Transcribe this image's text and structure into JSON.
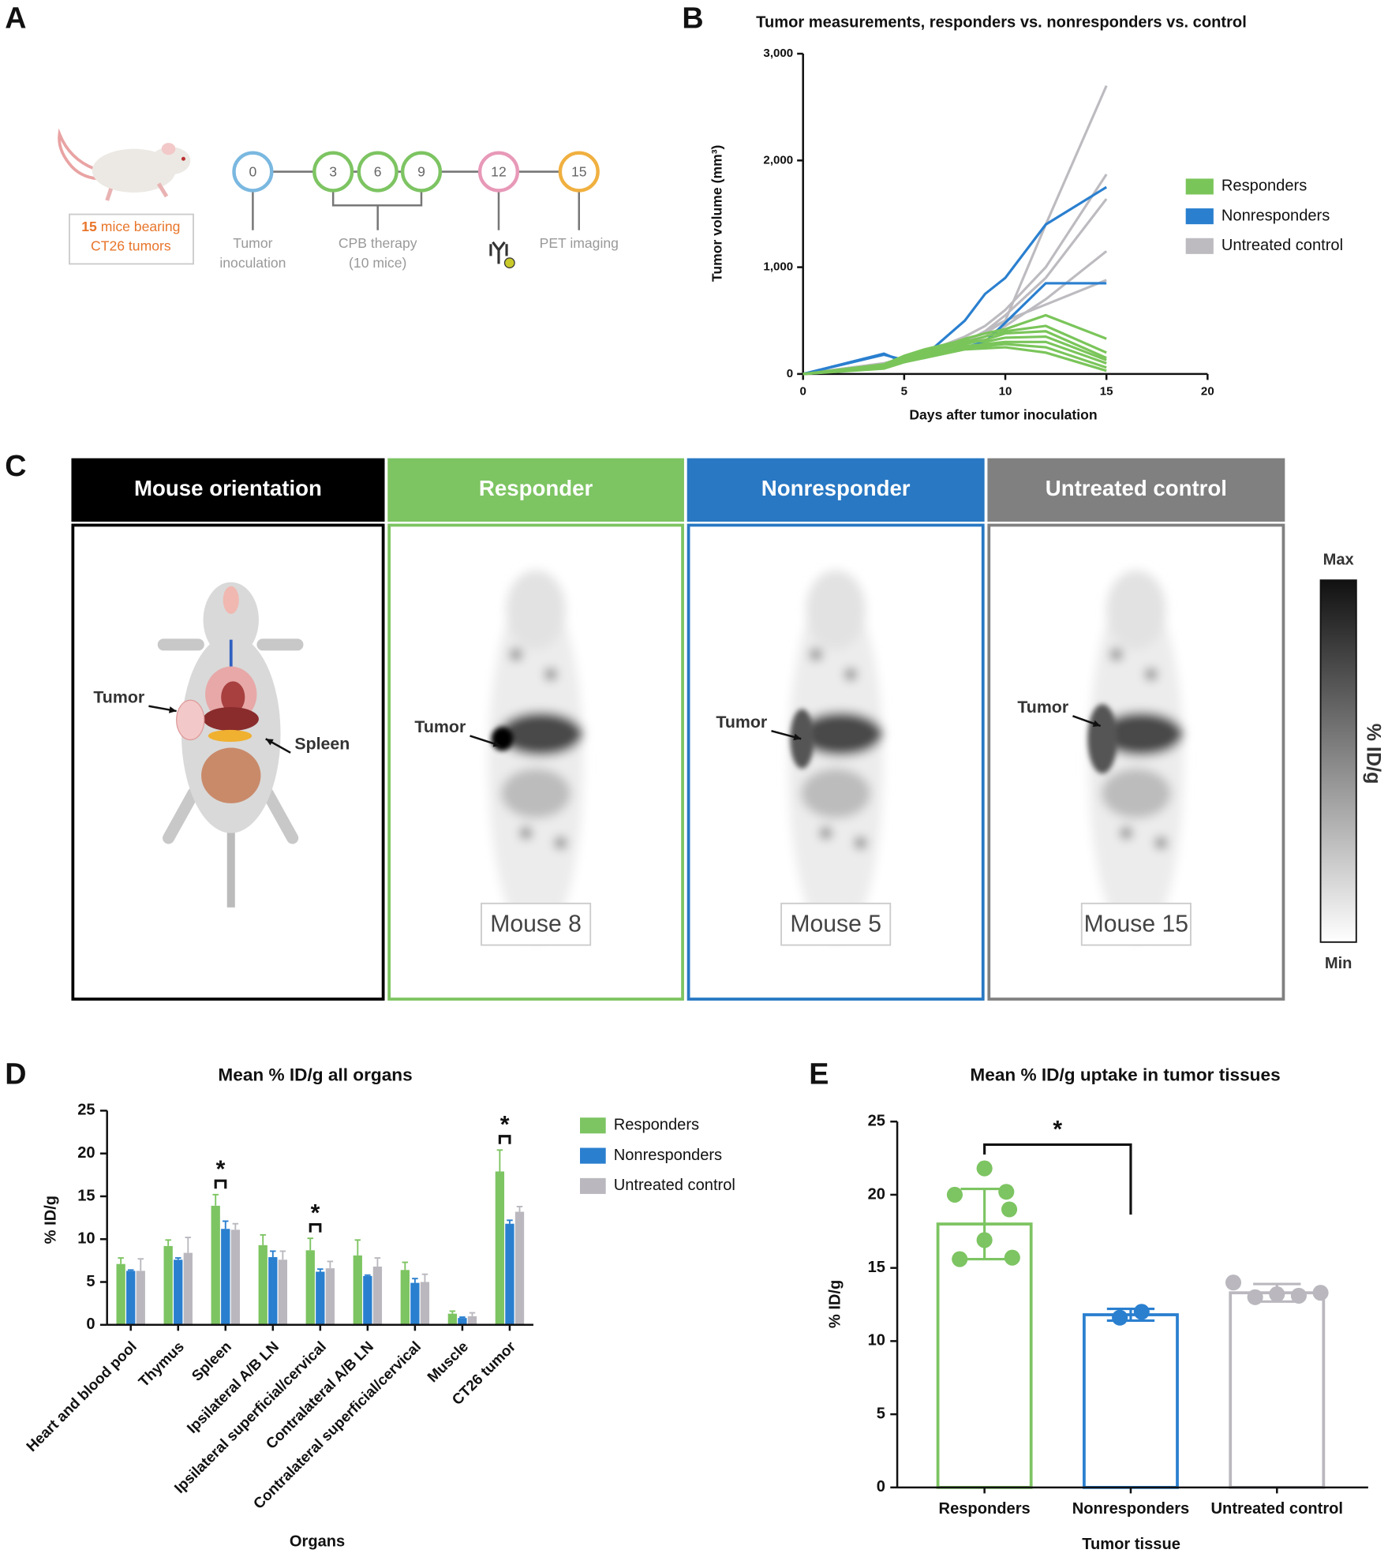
{
  "panel_labels": [
    "A",
    "B",
    "C",
    "D",
    "E"
  ],
  "panel_a": {
    "cohort": {
      "count": "15",
      "line1": "mice bearing",
      "line2": "CT26 tumors"
    },
    "timeline": {
      "days": [
        0,
        3,
        6,
        9,
        12,
        15
      ],
      "labels": [
        {
          "lines": [
            "Tumor",
            "inoculation"
          ]
        },
        {
          "lines": [
            "CPB therapy",
            "(10 mice)"
          ]
        },
        {
          "lines": [
            "PET imaging"
          ]
        }
      ]
    }
  },
  "panel_c": {
    "columns": [
      {
        "header": "Mouse orientation",
        "labels": [
          "Tumor",
          "Spleen"
        ]
      },
      {
        "header": "Responder",
        "labels": [
          "Tumor"
        ],
        "mouse": "Mouse 8"
      },
      {
        "header": "Nonresponder",
        "labels": [
          "Tumor"
        ],
        "mouse": "Mouse 5"
      },
      {
        "header": "Untreated control",
        "labels": [
          "Tumor"
        ],
        "mouse": "Mouse 15"
      }
    ],
    "colorbar": {
      "max": "Max",
      "min": "Min",
      "label": "% ID/g"
    }
  },
  "chart_data": [
    {
      "type": "line",
      "title": "Tumor measurements, responders vs. nonresponders vs. control",
      "x_label": "Days after tumor inoculation",
      "y_label": "Tumor volume (mm³)",
      "x": [
        0,
        4,
        5,
        6,
        8,
        9,
        10,
        12,
        15
      ],
      "series": [
        {
          "name": "Responders",
          "color": "#7ac55a",
          "lines": [
            [
              0,
              60,
              150,
              200,
              330,
              380,
              420,
              550,
              330
            ],
            [
              0,
              70,
              140,
              190,
              300,
              350,
              400,
              450,
              200
            ],
            [
              0,
              80,
              160,
              210,
              280,
              320,
              380,
              400,
              150
            ],
            [
              0,
              90,
              170,
              230,
              320,
              300,
              340,
              350,
              130
            ],
            [
              0,
              70,
              130,
              180,
              260,
              280,
              300,
              300,
              100
            ],
            [
              0,
              60,
              120,
              170,
              250,
              260,
              280,
              250,
              60
            ],
            [
              0,
              50,
              110,
              150,
              230,
              240,
              250,
              200,
              30
            ]
          ]
        },
        {
          "name": "Nonresponders",
          "color": "#2a7fcf",
          "lines": [
            [
              0,
              190,
              110,
              170,
              500,
              750,
              900,
              1400,
              1750
            ],
            [
              0,
              180,
              130,
              150,
              250,
              300,
              480,
              850,
              850
            ]
          ]
        },
        {
          "name": "Untreated control",
          "color": "#bdbbc0",
          "lines": [
            [
              0,
              100,
              150,
              200,
              300,
              400,
              500,
              1400,
              2700
            ],
            [
              0,
              90,
              140,
              200,
              350,
              450,
              600,
              1000,
              1870
            ],
            [
              0,
              80,
              120,
              180,
              300,
              400,
              550,
              900,
              1640
            ],
            [
              0,
              100,
              130,
              190,
              280,
              350,
              450,
              700,
              1150
            ],
            [
              0,
              90,
              150,
              210,
              320,
              380,
              500,
              650,
              880
            ]
          ]
        }
      ],
      "xlim": [
        0,
        20
      ],
      "xticks": [
        0,
        5,
        10,
        15,
        20
      ],
      "ylim": [
        0,
        3000
      ],
      "yticks": [
        0,
        {
          "value": 1000,
          "label": "1,000"
        },
        {
          "value": 2000,
          "label": "2,000"
        },
        {
          "value": 3000,
          "label": "3,000"
        }
      ],
      "legend": "right"
    },
    {
      "type": "grouped_bar",
      "title": "Mean % ID/g all organs",
      "x_label": "Organs",
      "y_label": "% ID/g",
      "categories": [
        "Heart and blood pool",
        "Thymus",
        "Spleen",
        "Ipsilateral A/B LN",
        "Ipsilateral superficial/cervical",
        "Contralateral A/B LN",
        "Contralateral superficial/cervical",
        "Muscle",
        "CT26 tumor"
      ],
      "series": [
        {
          "name": "Responders",
          "color": "#7dc462",
          "values": [
            7.1,
            9.2,
            13.9,
            9.3,
            8.7,
            8.1,
            6.4,
            1.3,
            17.9
          ],
          "errors": [
            0.7,
            0.7,
            1.3,
            1.2,
            1.4,
            1.8,
            0.9,
            0.3,
            2.5
          ]
        },
        {
          "name": "Nonresponders",
          "color": "#2a7fcf",
          "values": [
            6.3,
            7.6,
            11.2,
            7.9,
            6.2,
            5.7,
            4.9,
            0.8,
            11.8
          ],
          "errors": [
            0.1,
            0.2,
            0.9,
            0.7,
            0.3,
            0.1,
            0.5,
            0.1,
            0.4
          ]
        },
        {
          "name": "Untreated control",
          "color": "#bab8be",
          "values": [
            6.3,
            8.4,
            11.1,
            7.6,
            6.6,
            6.8,
            5.0,
            1.0,
            13.2
          ],
          "errors": [
            1.4,
            1.8,
            0.7,
            1.0,
            0.8,
            1.0,
            0.9,
            0.4,
            0.6
          ]
        }
      ],
      "ylim": [
        0,
        25
      ],
      "yticks": [
        0,
        5,
        10,
        15,
        20,
        25
      ],
      "significance": [
        {
          "category": "Spleen",
          "label": "*"
        },
        {
          "category": "Ipsilateral superficial/cervical",
          "label": "*"
        },
        {
          "category": "CT26 tumor",
          "label": "*"
        }
      ],
      "legend": "right"
    },
    {
      "type": "bar_points",
      "title": "Mean % ID/g uptake in tumor tissues",
      "x_label": "Tumor tissue",
      "y_label": "% ID/g",
      "categories": [
        "Responders",
        "Nonresponders",
        "Untreated control"
      ],
      "values": [
        18.0,
        11.8,
        13.3
      ],
      "errors": [
        2.4,
        0.4,
        0.6
      ],
      "points": [
        [
          21.8,
          20.0,
          20.2,
          16.9,
          15.6,
          15.7,
          19.0
        ],
        [
          11.6,
          12.0
        ],
        [
          14.0,
          13.0,
          13.2,
          13.1,
          13.3
        ]
      ],
      "colors": [
        "#7dc462",
        "#2a7fcf",
        "#bab8be"
      ],
      "ylim": [
        0,
        25
      ],
      "yticks": [
        0,
        5,
        10,
        15,
        20,
        25
      ],
      "significance": [
        {
          "from": "Responders",
          "to": "Nonresponders",
          "label": "*"
        }
      ]
    }
  ]
}
